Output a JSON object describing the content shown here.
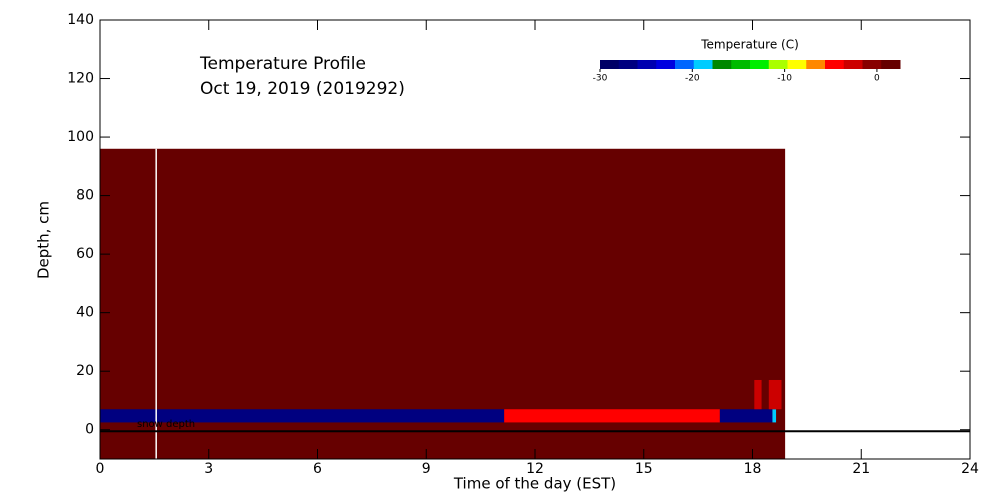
{
  "chart_data": {
    "type": "heatmap",
    "title": [
      "Temperature Profile",
      "Oct 19, 2019 (2019292)"
    ],
    "x_label": "Time of the day (EST)",
    "y_label": "Depth, cm",
    "xlim": [
      0,
      24
    ],
    "xticks": [
      0,
      3,
      6,
      9,
      12,
      15,
      18,
      21,
      24
    ],
    "ylim": [
      -10,
      140
    ],
    "yticks": [
      0,
      20,
      40,
      60,
      80,
      100,
      120,
      140
    ],
    "colorbar": {
      "title": "Temperature (C)",
      "lim": [
        -30,
        2.5
      ],
      "ticks": [
        -30,
        -20,
        -10,
        0
      ],
      "colors": [
        "#000066",
        "#000080",
        "#0000b0",
        "#0000e0",
        "#0066ff",
        "#00ccff",
        "#008800",
        "#00bb00",
        "#00ee00",
        "#aaff00",
        "#ffff00",
        "#ff8800",
        "#ff0000",
        "#cc0000",
        "#880000",
        "#660000"
      ]
    },
    "cells": [
      {
        "x": [
          0,
          18.9
        ],
        "y": [
          -10,
          96
        ],
        "value": 2
      },
      {
        "x": [
          0,
          11.15
        ],
        "y": [
          2.5,
          7
        ],
        "value": -27
      },
      {
        "x": [
          11.15,
          17.1
        ],
        "y": [
          2.5,
          7
        ],
        "value": -5
      },
      {
        "x": [
          17.1,
          18.55
        ],
        "y": [
          2.5,
          7
        ],
        "value": -27
      },
      {
        "x": [
          18.55,
          18.65
        ],
        "y": [
          2.5,
          7
        ],
        "value": -19
      },
      {
        "x": [
          18.05,
          18.25
        ],
        "y": [
          7,
          17
        ],
        "value": -2
      },
      {
        "x": [
          18.45,
          18.8
        ],
        "y": [
          7,
          17
        ],
        "value": -2
      }
    ],
    "marker_x": 1.55,
    "snow_depth": -0.5,
    "snow_depth_label": "snow depth"
  }
}
